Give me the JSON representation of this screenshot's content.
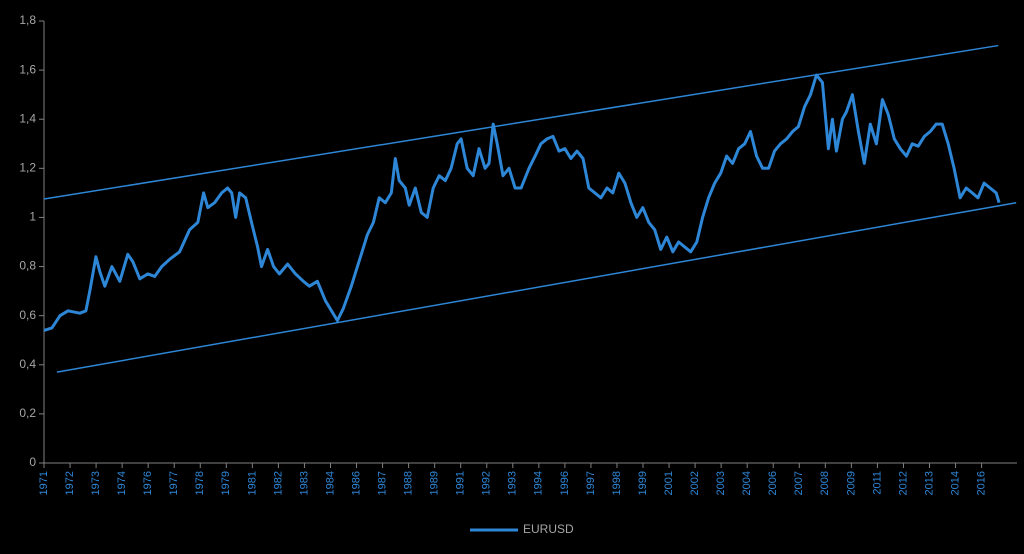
{
  "chart_data": {
    "type": "line",
    "x": [
      1971.0,
      1971.38,
      1971.77,
      1972.15,
      1972.72,
      1973.01,
      1973.2,
      1973.49,
      1973.68,
      1973.92,
      1974.26,
      1974.64,
      1975.02,
      1975.26,
      1975.6,
      1975.98,
      1976.32,
      1976.65,
      1977.04,
      1977.51,
      1977.99,
      1978.38,
      1978.66,
      1978.86,
      1979.19,
      1979.53,
      1979.81,
      1980.01,
      1980.2,
      1980.39,
      1980.68,
      1980.96,
      1981.25,
      1981.44,
      1981.73,
      1982.02,
      1982.3,
      1982.69,
      1983.07,
      1983.45,
      1983.74,
      1984.12,
      1984.51,
      1984.8,
      1985.08,
      1985.37,
      1985.75,
      1986.04,
      1986.23,
      1986.52,
      1986.81,
      1987.09,
      1987.38,
      1987.67,
      1987.86,
      1988.05,
      1988.34,
      1988.53,
      1988.82,
      1989.11,
      1989.39,
      1989.68,
      1989.97,
      1990.26,
      1990.54,
      1990.83,
      1991.02,
      1991.31,
      1991.6,
      1991.88,
      1992.17,
      1992.36,
      1992.56,
      1992.75,
      1993.03,
      1993.32,
      1993.61,
      1993.9,
      1994.28,
      1994.57,
      1994.85,
      1995.14,
      1995.43,
      1995.72,
      1996.0,
      1996.29,
      1996.58,
      1996.87,
      1997.15,
      1997.44,
      1997.73,
      1998.02,
      1998.3,
      1998.59,
      1998.88,
      1999.17,
      1999.45,
      1999.74,
      2000.03,
      2000.31,
      2000.6,
      2000.89,
      2001.18,
      2001.46,
      2001.75,
      2002.04,
      2002.33,
      2002.61,
      2002.9,
      2003.19,
      2003.48,
      2003.76,
      2004.05,
      2004.34,
      2004.63,
      2004.91,
      2005.2,
      2005.49,
      2005.78,
      2006.06,
      2006.35,
      2006.64,
      2006.93,
      2007.21,
      2007.5,
      2007.79,
      2008.07,
      2008.36,
      2008.65,
      2008.84,
      2009.03,
      2009.32,
      2009.51,
      2009.8,
      2010.09,
      2010.37,
      2010.66,
      2010.95,
      2011.24,
      2011.52,
      2011.81,
      2012.1,
      2012.39,
      2012.67,
      2012.96,
      2013.25,
      2013.54,
      2013.82,
      2014.11,
      2014.4,
      2014.68,
      2014.97,
      2015.26,
      2015.55,
      2015.83,
      2016.12,
      2016.41,
      2016.7,
      2016.84
    ],
    "series": [
      {
        "name": "EURUSD",
        "color": "#2e86d6",
        "values": [
          0.54,
          0.55,
          0.6,
          0.62,
          0.61,
          0.62,
          0.7,
          0.84,
          0.78,
          0.72,
          0.8,
          0.74,
          0.85,
          0.82,
          0.75,
          0.77,
          0.76,
          0.8,
          0.83,
          0.86,
          0.95,
          0.98,
          1.1,
          1.04,
          1.06,
          1.1,
          1.12,
          1.1,
          1.0,
          1.1,
          1.08,
          0.98,
          0.88,
          0.8,
          0.87,
          0.8,
          0.77,
          0.81,
          0.77,
          0.74,
          0.72,
          0.74,
          0.66,
          0.62,
          0.58,
          0.63,
          0.72,
          0.8,
          0.85,
          0.93,
          0.98,
          1.08,
          1.06,
          1.1,
          1.24,
          1.15,
          1.12,
          1.05,
          1.12,
          1.02,
          1.0,
          1.12,
          1.17,
          1.15,
          1.2,
          1.3,
          1.32,
          1.2,
          1.17,
          1.28,
          1.2,
          1.22,
          1.38,
          1.3,
          1.17,
          1.2,
          1.12,
          1.12,
          1.2,
          1.25,
          1.3,
          1.32,
          1.33,
          1.27,
          1.28,
          1.24,
          1.27,
          1.24,
          1.12,
          1.1,
          1.08,
          1.12,
          1.1,
          1.18,
          1.14,
          1.06,
          1.0,
          1.04,
          0.98,
          0.95,
          0.87,
          0.92,
          0.86,
          0.9,
          0.88,
          0.86,
          0.9,
          1.0,
          1.08,
          1.14,
          1.18,
          1.25,
          1.22,
          1.28,
          1.3,
          1.35,
          1.25,
          1.2,
          1.2,
          1.27,
          1.3,
          1.32,
          1.35,
          1.37,
          1.45,
          1.5,
          1.58,
          1.55,
          1.28,
          1.4,
          1.27,
          1.4,
          1.43,
          1.5,
          1.35,
          1.22,
          1.38,
          1.3,
          1.48,
          1.42,
          1.32,
          1.28,
          1.25,
          1.3,
          1.29,
          1.33,
          1.35,
          1.38,
          1.38,
          1.3,
          1.2,
          1.08,
          1.12,
          1.1,
          1.08,
          1.14,
          1.12,
          1.1,
          1.06
        ]
      }
    ],
    "trendlines": [
      {
        "color": "#2e86d6",
        "x": [
          1971.0,
          2016.8
        ],
        "y": [
          1.075,
          1.7
        ]
      },
      {
        "color": "#2e86d6",
        "x": [
          1971.62,
          2017.66
        ],
        "y": [
          0.37,
          1.06
        ]
      }
    ],
    "xlim": [
      1971,
      2017.7
    ],
    "ylim": [
      0,
      1.8
    ],
    "yticks": [
      0,
      {
        "value": 0.2,
        "label": "0,2"
      },
      {
        "value": 0.4,
        "label": "0,4"
      },
      {
        "value": 0.6,
        "label": "0,6"
      },
      {
        "value": 0.8,
        "label": "0,8"
      },
      1,
      {
        "value": 1.2,
        "label": "1,2"
      },
      {
        "value": 1.4,
        "label": "1,4"
      },
      {
        "value": 1.6,
        "label": "1,6"
      },
      {
        "value": 1.8,
        "label": "1,8"
      }
    ],
    "xticks": [
      1971,
      {
        "value": 1972.25,
        "label": "1972"
      },
      {
        "value": 1973.5,
        "label": "1973"
      },
      {
        "value": 1974.75,
        "label": "1974"
      },
      {
        "value": 1976,
        "label": "1976"
      },
      {
        "value": 1977.25,
        "label": "1977"
      },
      {
        "value": 1978.5,
        "label": "1978"
      },
      {
        "value": 1979.75,
        "label": "1979"
      },
      {
        "value": 1981,
        "label": "1981"
      },
      {
        "value": 1982.25,
        "label": "1982"
      },
      {
        "value": 1983.5,
        "label": "1983"
      },
      {
        "value": 1984.75,
        "label": "1984"
      },
      {
        "value": 1986,
        "label": "1986"
      },
      {
        "value": 1987.25,
        "label": "1987"
      },
      {
        "value": 1988.5,
        "label": "1988"
      },
      {
        "value": 1989.75,
        "label": "1989"
      },
      {
        "value": 1991,
        "label": "1991"
      },
      {
        "value": 1992.25,
        "label": "1992"
      },
      {
        "value": 1993.5,
        "label": "1993"
      },
      {
        "value": 1994.75,
        "label": "1994"
      },
      {
        "value": 1996,
        "label": "1996"
      },
      {
        "value": 1997.25,
        "label": "1997"
      },
      {
        "value": 1998.5,
        "label": "1998"
      },
      {
        "value": 1999.75,
        "label": "1999"
      },
      {
        "value": 2001,
        "label": "2001"
      },
      {
        "value": 2002.25,
        "label": "2002"
      },
      {
        "value": 2003.5,
        "label": "2003"
      },
      {
        "value": 2004.75,
        "label": "2004"
      },
      {
        "value": 2006,
        "label": "2006"
      },
      {
        "value": 2007.25,
        "label": "2007"
      },
      {
        "value": 2008.5,
        "label": "2008"
      },
      {
        "value": 2009.75,
        "label": "2009"
      },
      {
        "value": 2011,
        "label": "2011"
      },
      {
        "value": 2012.25,
        "label": "2012"
      },
      {
        "value": 2013.5,
        "label": "2013"
      },
      {
        "value": 2014.75,
        "label": "2014"
      },
      {
        "value": 2016,
        "label": "2016"
      }
    ],
    "legend": "bottom"
  }
}
